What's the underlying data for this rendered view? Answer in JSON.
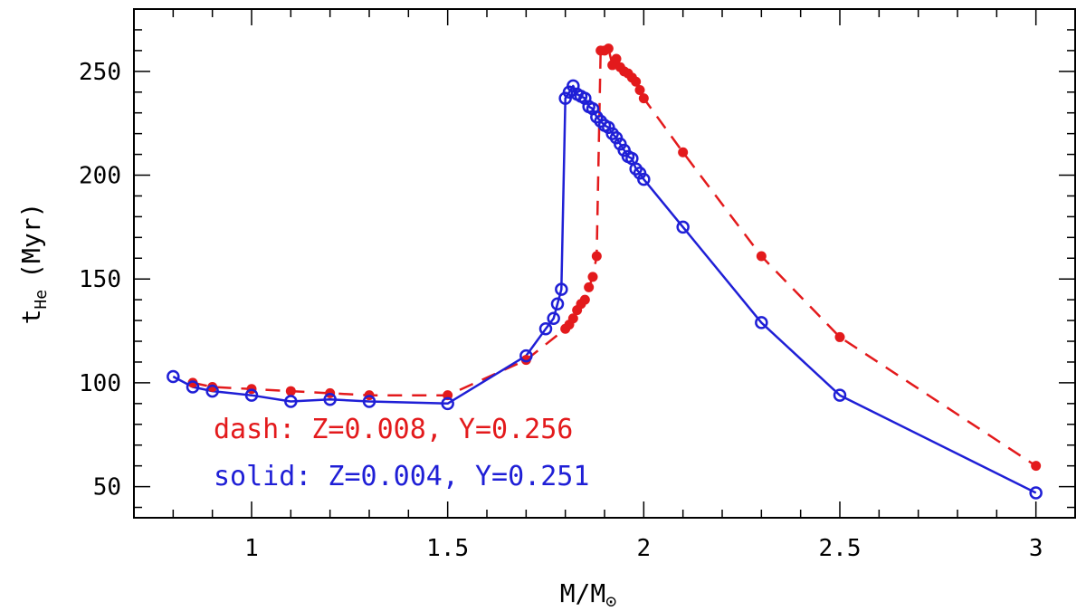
{
  "chart_data": {
    "type": "line",
    "title": "",
    "xlabel": "M/M",
    "xlabel_sub": "⊙",
    "ylabel": "t",
    "ylabel_sub": "He",
    "ylabel_suffix": "(Myr)",
    "xlim": [
      0.7,
      3.1
    ],
    "ylim": [
      35,
      280
    ],
    "x_ticks": [
      1,
      1.5,
      2,
      2.5,
      3
    ],
    "x_tick_labels": [
      "1",
      "1.5",
      "2",
      "2.5",
      "3"
    ],
    "y_ticks": [
      50,
      100,
      150,
      200,
      250
    ],
    "y_tick_labels": [
      "50",
      "100",
      "150",
      "200",
      "250"
    ],
    "grid": false,
    "legend": [
      {
        "text": "dash: Z=0.008, Y=0.256",
        "color": "#e31a1c"
      },
      {
        "text": "solid: Z=0.004, Y=0.251",
        "color": "#1f1fd6"
      }
    ],
    "series": [
      {
        "name": "dash: Z=0.008, Y=0.256",
        "color": "#e31a1c",
        "line": "dashed",
        "marker": "filled-circle",
        "x": [
          0.85,
          0.9,
          1.0,
          1.1,
          1.2,
          1.3,
          1.5,
          1.7,
          1.8,
          1.81,
          1.82,
          1.83,
          1.84,
          1.85,
          1.86,
          1.87,
          1.88,
          1.89,
          1.9,
          1.91,
          1.92,
          1.93,
          1.94,
          1.95,
          1.96,
          1.97,
          1.98,
          1.99,
          2.0,
          2.1,
          2.3,
          2.5,
          3.0
        ],
        "y": [
          100,
          98,
          97,
          96,
          95,
          94,
          94,
          111,
          126,
          128,
          131,
          135,
          138,
          140,
          146,
          151,
          161,
          260,
          260,
          261,
          253,
          256,
          252,
          250,
          249,
          247,
          245,
          241,
          237,
          211,
          161,
          122,
          60
        ]
      },
      {
        "name": "solid: Z=0.004, Y=0.251",
        "color": "#1f1fd6",
        "line": "solid",
        "marker": "open-circle",
        "x": [
          0.8,
          0.85,
          0.9,
          1.0,
          1.1,
          1.2,
          1.3,
          1.5,
          1.7,
          1.75,
          1.77,
          1.78,
          1.79,
          1.8,
          1.81,
          1.82,
          1.83,
          1.84,
          1.85,
          1.86,
          1.87,
          1.88,
          1.89,
          1.9,
          1.91,
          1.92,
          1.93,
          1.94,
          1.95,
          1.96,
          1.97,
          1.98,
          1.99,
          2.0,
          2.1,
          2.3,
          2.5,
          3.0
        ],
        "y": [
          103,
          98,
          96,
          94,
          91,
          92,
          91,
          90,
          113,
          126,
          131,
          138,
          145,
          237,
          240,
          243,
          239,
          238,
          237,
          233,
          232,
          228,
          226,
          224,
          223,
          220,
          218,
          215,
          212,
          209,
          208,
          203,
          201,
          198,
          175,
          129,
          94,
          47
        ]
      }
    ]
  }
}
